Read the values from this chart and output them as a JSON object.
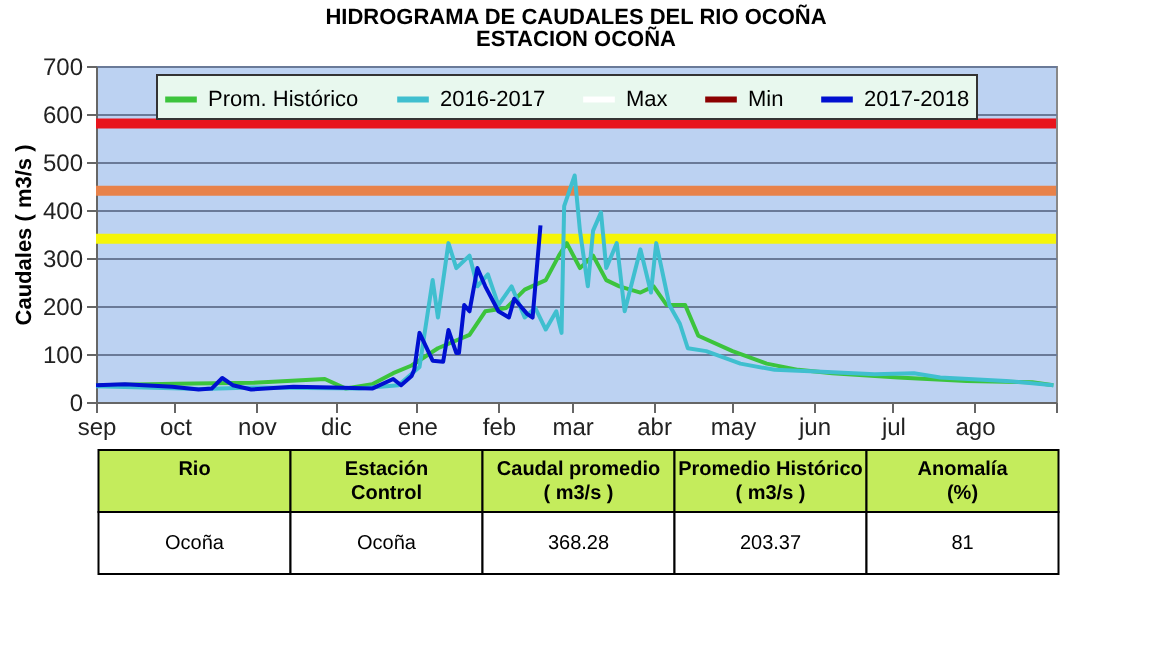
{
  "chart_data": {
    "type": "line",
    "title": "HIDROGRAMA DE CAUDALES DEL RIO OCOÑA",
    "subtitle": "ESTACION OCOÑA",
    "ylabel": "Caudales ( m3/s )",
    "xlim": [
      "2017-09-01",
      "2018-09-01"
    ],
    "ylim": [
      0,
      700
    ],
    "yticks": [
      0,
      100,
      200,
      300,
      400,
      500,
      600,
      700
    ],
    "xticks": [
      {
        "value": "2017-09-01",
        "label": "sep"
      },
      {
        "value": "2017-10-01",
        "label": "oct"
      },
      {
        "value": "2017-11-01",
        "label": "nov"
      },
      {
        "value": "2017-12-01",
        "label": "dic"
      },
      {
        "value": "2018-01-01",
        "label": "ene"
      },
      {
        "value": "2018-02-01",
        "label": "feb"
      },
      {
        "value": "2018-03-01",
        "label": "mar"
      },
      {
        "value": "2018-04-01",
        "label": "abr"
      },
      {
        "value": "2018-05-01",
        "label": "may"
      },
      {
        "value": "2018-06-01",
        "label": "jun"
      },
      {
        "value": "2018-07-01",
        "label": "jul"
      },
      {
        "value": "2018-08-01",
        "label": "ago"
      },
      {
        "value": "2018-09-01",
        "label": null
      }
    ],
    "grid": "y",
    "legend": "top",
    "line_style": "solid",
    "marker": "none",
    "series": [
      {
        "name": "Prom. Histórico",
        "color": "#3cc43c",
        "x": [
          "2017-09-01",
          "2017-10-01",
          "2017-10-31",
          "2017-11-27",
          "2017-12-05",
          "2017-12-15",
          "2017-12-23",
          "2017-12-30",
          "2018-01-09",
          "2018-01-21",
          "2018-01-27",
          "2018-02-04",
          "2018-02-11",
          "2018-02-19",
          "2018-02-24",
          "2018-02-27",
          "2018-03-04",
          "2018-03-09",
          "2018-03-14",
          "2018-03-19",
          "2018-03-27",
          "2018-04-01",
          "2018-04-06",
          "2018-04-13",
          "2018-04-18",
          "2018-05-01",
          "2018-05-14",
          "2018-05-26",
          "2018-06-08",
          "2018-07-03",
          "2018-07-29",
          "2018-08-23",
          "2018-08-31"
        ],
        "values": [
          35,
          38,
          40,
          48,
          28,
          37,
          60,
          76,
          112,
          140,
          189,
          196,
          234,
          254,
          305,
          331,
          279,
          305,
          254,
          241,
          228,
          241,
          202,
          202,
          138,
          106,
          80,
          67,
          60,
          51,
          44,
          41,
          35
        ]
      },
      {
        "name": "2016-2017",
        "color": "#3fbfcf",
        "x": [
          "2017-09-01",
          "2017-10-11",
          "2017-10-31",
          "2017-12-10",
          "2017-12-25",
          "2018-01-02",
          "2018-01-07",
          "2018-01-09",
          "2018-01-13",
          "2018-01-16",
          "2018-01-21",
          "2018-01-24",
          "2018-01-28",
          "2018-02-01",
          "2018-02-06",
          "2018-02-11",
          "2018-02-15",
          "2018-02-19",
          "2018-02-23",
          "2018-02-25",
          "2018-02-26",
          "2018-03-02",
          "2018-03-04",
          "2018-03-07",
          "2018-03-09",
          "2018-03-12",
          "2018-03-14",
          "2018-03-18",
          "2018-03-21",
          "2018-03-27",
          "2018-03-31",
          "2018-04-02",
          "2018-04-07",
          "2018-04-11",
          "2018-04-14",
          "2018-04-21",
          "2018-05-04",
          "2018-05-17",
          "2018-06-04",
          "2018-06-24",
          "2018-07-09",
          "2018-07-19",
          "2018-08-13",
          "2018-08-31"
        ],
        "values": [
          33,
          27,
          30,
          28,
          35,
          73,
          254,
          176,
          331,
          279,
          305,
          241,
          266,
          202,
          241,
          176,
          196,
          151,
          189,
          144,
          408,
          472,
          357,
          241,
          357,
          395,
          279,
          331,
          189,
          318,
          228,
          331,
          202,
          163,
          112,
          106,
          80,
          67,
          63,
          58,
          60,
          51,
          44,
          35
        ]
      },
      {
        "name": "Max",
        "color": "#ffffff"
      },
      {
        "name": "Min",
        "color": "#8b0000"
      },
      {
        "name": "2017-2018",
        "color": "#0010d0",
        "x": [
          "2017-09-01",
          "2017-09-12",
          "2017-09-30",
          "2017-10-10",
          "2017-10-15",
          "2017-10-19",
          "2017-10-23",
          "2017-10-30",
          "2017-11-15",
          "2017-11-30",
          "2017-12-15",
          "2017-12-23",
          "2017-12-26",
          "2017-12-30",
          "2017-12-31",
          "2018-01-02",
          "2018-01-07",
          "2018-01-11",
          "2018-01-13",
          "2018-01-16",
          "2018-01-17",
          "2018-01-19",
          "2018-01-21",
          "2018-01-24",
          "2018-01-27",
          "2018-02-01",
          "2018-02-05",
          "2018-02-07",
          "2018-02-12",
          "2018-02-14",
          "2018-02-17"
        ],
        "values": [
          35,
          37,
          32,
          26,
          28,
          50,
          35,
          26,
          32,
          30,
          28,
          48,
          35,
          54,
          67,
          144,
          86,
          84,
          150,
          102,
          102,
          202,
          189,
          279,
          241,
          189,
          176,
          215,
          183,
          176,
          368
        ]
      }
    ],
    "ref_lines": [
      {
        "axis": "y",
        "value": 580,
        "color": "#e8141c"
      },
      {
        "axis": "y",
        "value": 440,
        "color": "#e8824a"
      },
      {
        "axis": "y",
        "value": 340,
        "color": "#f5f50a"
      }
    ],
    "annotations": [
      "Rio",
      "Estación Control",
      "Caudal promedio ( m3/s )",
      "Promedio Histórico ( m3/s )",
      "Anomalía (%)",
      "Ocoña",
      "Ocoña",
      "368.28",
      "203.37",
      "81"
    ]
  }
}
